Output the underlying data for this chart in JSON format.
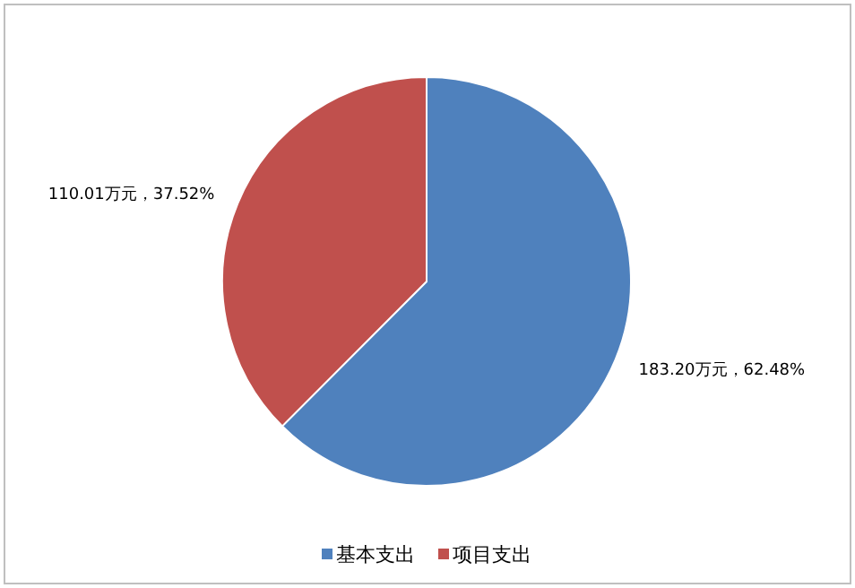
{
  "chart_data": {
    "type": "pie",
    "categories": [
      "基本支出",
      "项目支出"
    ],
    "values": [
      183.2,
      110.01
    ],
    "colors": [
      "#4f81bd",
      "#c0504d"
    ],
    "value_labels": [
      "183.20万元，62.48%",
      "110.01万元，37.52%"
    ],
    "legend": "bottom"
  }
}
